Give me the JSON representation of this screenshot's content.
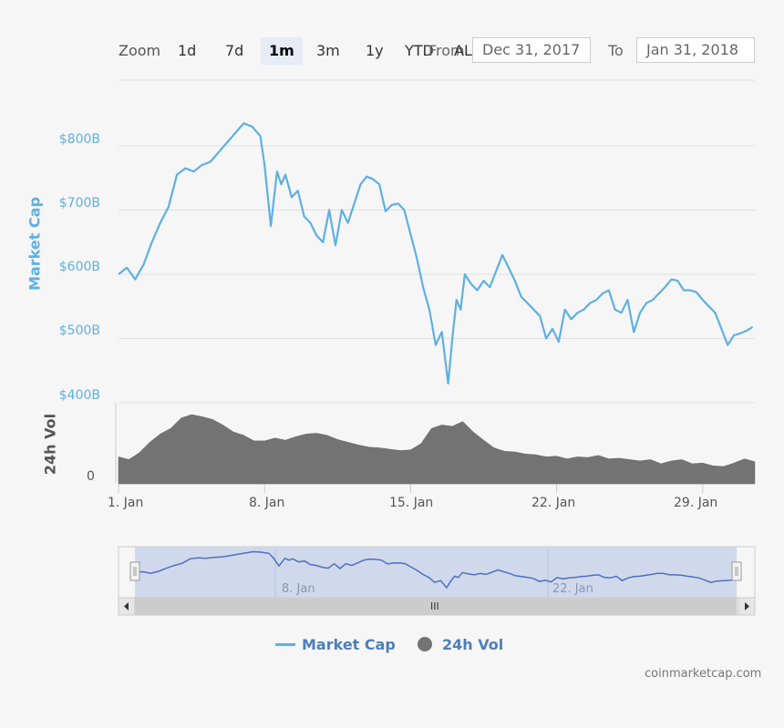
{
  "toolbar": {
    "zoom_label": "Zoom",
    "buttons": [
      "1d",
      "7d",
      "1m",
      "3m",
      "1y",
      "YTD",
      "ALL"
    ],
    "active": "1m",
    "from_label": "From",
    "from_value": "Dec 31, 2017",
    "to_label": "To",
    "to_value": "Jan 31, 2018"
  },
  "colors": {
    "market_cap": "#5fb0e0",
    "volume": "#737373",
    "navigator": "#4e6fbf"
  },
  "chart_data": [
    {
      "type": "line",
      "title": "Market Cap",
      "ylabel": "Market Cap",
      "ylim": [
        400,
        850
      ],
      "yticks": [
        400,
        500,
        600,
        700,
        800
      ],
      "ytick_labels": [
        "$400B",
        "$500B",
        "$600B",
        "$700B",
        "$800B"
      ],
      "xlim": [
        1,
        31.5
      ],
      "x": [
        1,
        1.4,
        1.8,
        2.2,
        2.6,
        3.0,
        3.4,
        3.8,
        4.2,
        4.6,
        5.0,
        5.4,
        5.8,
        6.2,
        6.6,
        7.0,
        7.4,
        7.8,
        8.0,
        8.3,
        8.6,
        8.8,
        9.0,
        9.3,
        9.6,
        9.9,
        10.2,
        10.5,
        10.8,
        11.1,
        11.4,
        11.7,
        12.0,
        12.3,
        12.6,
        12.9,
        13.2,
        13.5,
        13.8,
        14.1,
        14.4,
        14.7,
        15.0,
        15.3,
        15.6,
        15.9,
        16.2,
        16.5,
        16.8,
        17.0,
        17.2,
        17.4,
        17.6,
        17.9,
        18.2,
        18.5,
        18.8,
        19.1,
        19.4,
        19.7,
        20.0,
        20.3,
        20.6,
        20.9,
        21.2,
        21.5,
        21.8,
        22.1,
        22.4,
        22.7,
        23.0,
        23.3,
        23.6,
        23.9,
        24.2,
        24.5,
        24.8,
        25.1,
        25.4,
        25.7,
        26.0,
        26.3,
        26.6,
        26.9,
        27.2,
        27.5,
        27.8,
        28.1,
        28.4,
        28.7,
        29.0,
        29.3,
        29.6,
        29.9,
        30.2,
        30.5,
        30.8,
        31.1,
        31.4
      ],
      "y": [
        600,
        610,
        592,
        615,
        650,
        680,
        705,
        755,
        765,
        760,
        770,
        775,
        790,
        805,
        820,
        835,
        830,
        815,
        770,
        675,
        760,
        740,
        755,
        720,
        730,
        690,
        680,
        660,
        650,
        700,
        645,
        700,
        680,
        710,
        740,
        752,
        748,
        740,
        698,
        708,
        710,
        700,
        662,
        625,
        580,
        545,
        490,
        510,
        430,
        500,
        560,
        545,
        600,
        585,
        575,
        590,
        580,
        605,
        630,
        610,
        590,
        565,
        555,
        545,
        535,
        500,
        515,
        495,
        545,
        530,
        540,
        545,
        555,
        560,
        570,
        575,
        545,
        540,
        560,
        510,
        540,
        555,
        560,
        570,
        580,
        592,
        590,
        575,
        575,
        572,
        560,
        550,
        540,
        515,
        490,
        505,
        508,
        512,
        518
      ]
    },
    {
      "type": "area",
      "title": "24h Vol",
      "ylabel": "24h Vol",
      "ytick_labels": [
        "0"
      ],
      "x": [
        1,
        1.5,
        2,
        2.5,
        3,
        3.5,
        4,
        4.5,
        5,
        5.5,
        6,
        6.5,
        7,
        7.5,
        8,
        8.5,
        9,
        9.5,
        10,
        10.5,
        11,
        11.5,
        12,
        12.5,
        13,
        13.5,
        14,
        14.5,
        15,
        15.5,
        16,
        16.5,
        17,
        17.5,
        18,
        18.5,
        19,
        19.5,
        20,
        20.5,
        21,
        21.5,
        22,
        22.5,
        23,
        23.5,
        24,
        24.5,
        25,
        25.5,
        26,
        26.5,
        27,
        27.5,
        28,
        28.5,
        29,
        29.5,
        30,
        30.5,
        31,
        31.5
      ],
      "values": [
        0.39,
        0.35,
        0.45,
        0.6,
        0.72,
        0.8,
        0.95,
        1.0,
        0.97,
        0.93,
        0.85,
        0.75,
        0.7,
        0.62,
        0.62,
        0.66,
        0.63,
        0.68,
        0.72,
        0.73,
        0.7,
        0.64,
        0.6,
        0.56,
        0.53,
        0.52,
        0.5,
        0.48,
        0.49,
        0.58,
        0.8,
        0.85,
        0.83,
        0.9,
        0.75,
        0.63,
        0.52,
        0.47,
        0.46,
        0.43,
        0.42,
        0.39,
        0.4,
        0.36,
        0.39,
        0.38,
        0.41,
        0.36,
        0.37,
        0.35,
        0.33,
        0.35,
        0.29,
        0.33,
        0.35,
        0.29,
        0.3,
        0.26,
        0.25,
        0.3,
        0.36,
        0.32
      ]
    }
  ],
  "xaxis": {
    "ticks": [
      1,
      8,
      15,
      22,
      29
    ],
    "labels": [
      "1. Jan",
      "8. Jan",
      "15. Jan",
      "22. Jan",
      "29. Jan"
    ]
  },
  "navigator": {
    "labels": [
      "8. Jan",
      "22. Jan"
    ],
    "grip_label": "III"
  },
  "legend": [
    {
      "label": "Market Cap",
      "icon": "line-icon"
    },
    {
      "label": "24h Vol",
      "icon": "circle-icon"
    }
  ],
  "credit": "coinmarketcap.com"
}
